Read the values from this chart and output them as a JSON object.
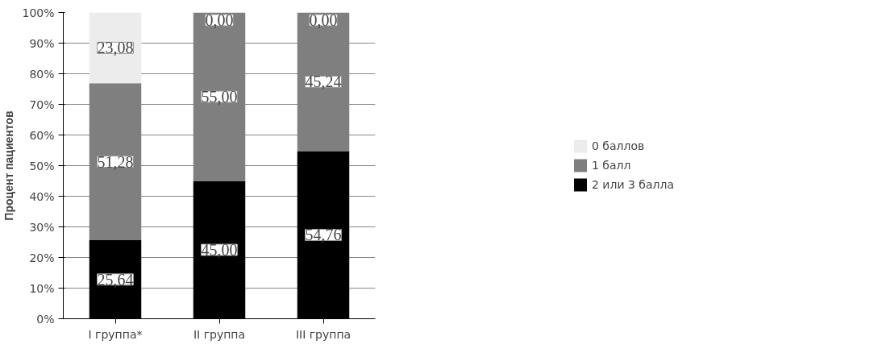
{
  "chart_data": {
    "type": "bar",
    "stacked": true,
    "ylabel": "Процент пациентов",
    "categories": [
      "I группа*",
      "II группа",
      "III группа"
    ],
    "series": [
      {
        "name": "2 или 3 балла",
        "color": "#000000",
        "values": [
          25.64,
          45.0,
          54.76
        ],
        "value_labels": [
          "25,64",
          "45,00",
          "54,76"
        ]
      },
      {
        "name": "1 балл",
        "color": "#7f7f7f",
        "values": [
          51.28,
          55.0,
          45.24
        ],
        "value_labels": [
          "51,28",
          "55,00",
          "45,24"
        ]
      },
      {
        "name": "0 баллов",
        "color": "#ececec",
        "values": [
          23.08,
          0.0,
          0.0
        ],
        "value_labels": [
          "23,08",
          "0,00",
          "0,00"
        ]
      }
    ],
    "ylim": [
      0,
      100
    ],
    "yticks": [
      {
        "value": 0,
        "label": "0%"
      },
      {
        "value": 10,
        "label": "10%"
      },
      {
        "value": 20,
        "label": "20%"
      },
      {
        "value": 30,
        "label": "30%"
      },
      {
        "value": 40,
        "label": "40%"
      },
      {
        "value": 50,
        "label": "50%"
      },
      {
        "value": 60,
        "label": "60%"
      },
      {
        "value": 70,
        "label": "70%"
      },
      {
        "value": 80,
        "label": "80%"
      },
      {
        "value": 90,
        "label": "90%"
      },
      {
        "value": 100,
        "label": "100%"
      }
    ],
    "grid": "y",
    "legend": "right"
  }
}
